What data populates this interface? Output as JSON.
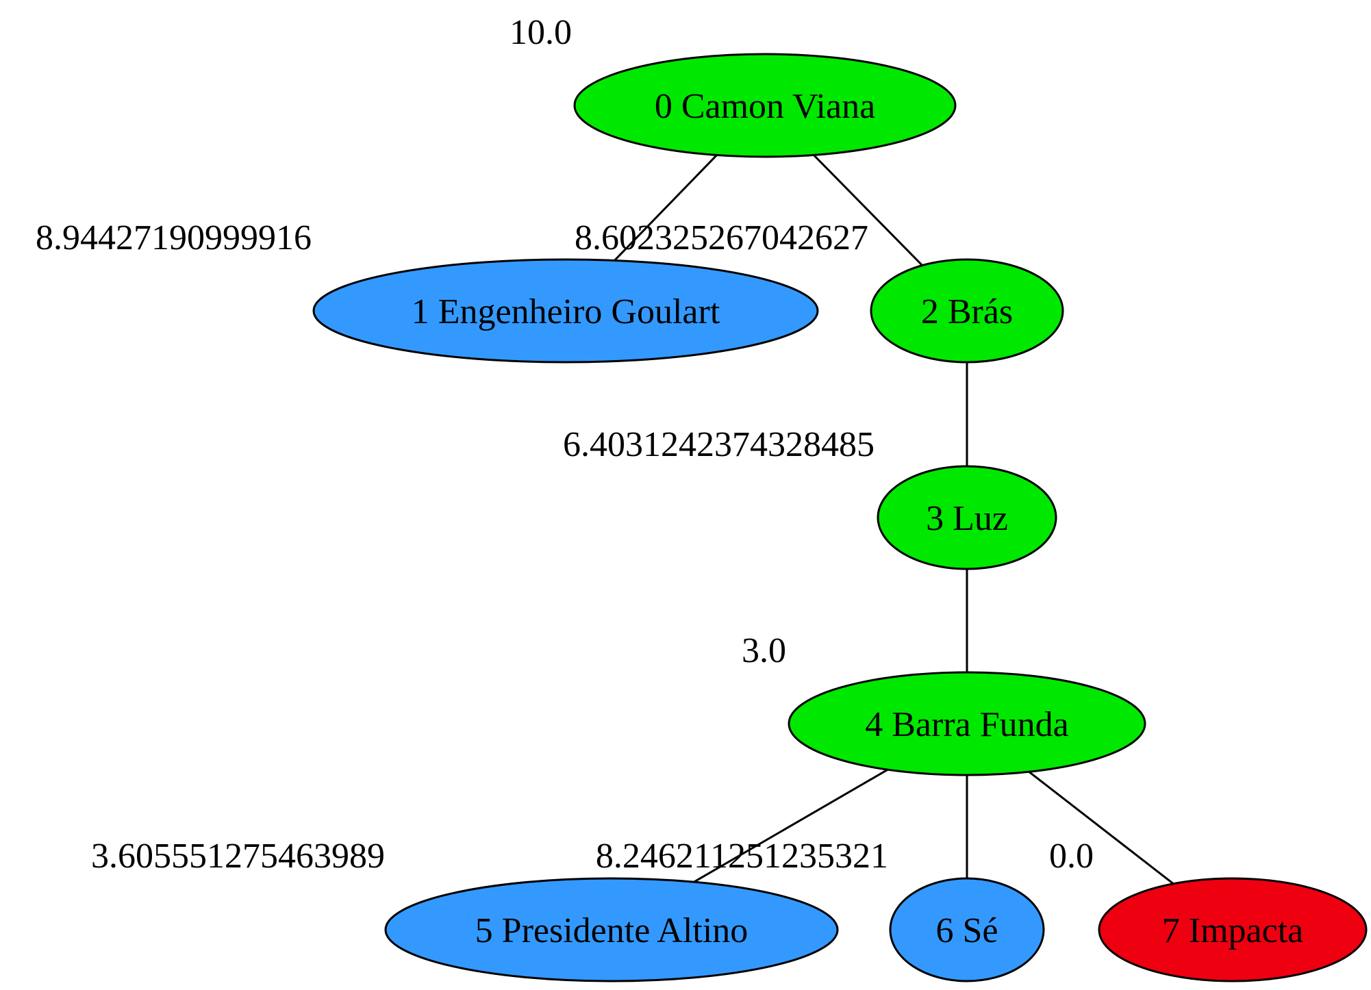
{
  "colors": {
    "green": "#00e800",
    "blue": "#3399ff",
    "red": "#ee0011",
    "stroke": "#000000"
  },
  "nodes": [
    {
      "id": "0",
      "label": "0 Camon Viana",
      "color": "green",
      "heuristic": "10.0"
    },
    {
      "id": "1",
      "label": "1 Engenheiro Goulart",
      "color": "blue",
      "heuristic": "8.94427190999916"
    },
    {
      "id": "2",
      "label": "2 Brás",
      "color": "green",
      "heuristic": "8.602325267042627"
    },
    {
      "id": "3",
      "label": "3 Luz",
      "color": "green",
      "heuristic": "6.4031242374328485"
    },
    {
      "id": "4",
      "label": "4 Barra Funda",
      "color": "green",
      "heuristic": "3.0"
    },
    {
      "id": "5",
      "label": "5 Presidente Altino",
      "color": "blue",
      "heuristic": "3.605551275463989"
    },
    {
      "id": "6",
      "label": "6 Sé",
      "color": "blue",
      "heuristic": "8.246211251235321"
    },
    {
      "id": "7",
      "label": "7 Impacta",
      "color": "red",
      "heuristic": "0.0"
    }
  ],
  "edges": [
    {
      "from": "0",
      "to": "1"
    },
    {
      "from": "0",
      "to": "2"
    },
    {
      "from": "2",
      "to": "3"
    },
    {
      "from": "3",
      "to": "4"
    },
    {
      "from": "4",
      "to": "5"
    },
    {
      "from": "4",
      "to": "6"
    },
    {
      "from": "4",
      "to": "7"
    }
  ]
}
